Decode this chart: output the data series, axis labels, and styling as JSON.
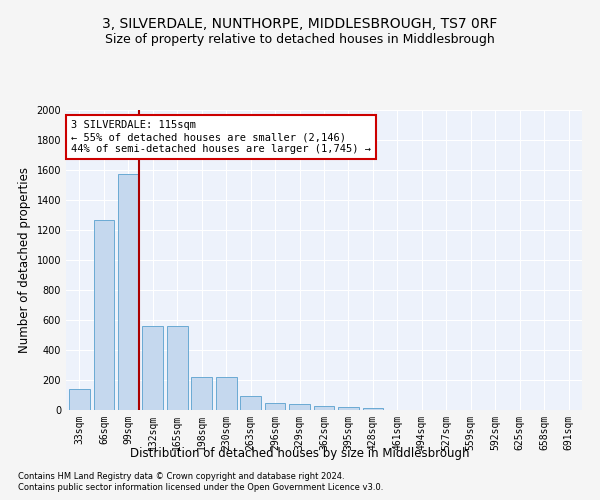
{
  "title": "3, SILVERDALE, NUNTHORPE, MIDDLESBROUGH, TS7 0RF",
  "subtitle": "Size of property relative to detached houses in Middlesbrough",
  "xlabel": "Distribution of detached houses by size in Middlesbrough",
  "ylabel": "Number of detached properties",
  "footnote1": "Contains HM Land Registry data © Crown copyright and database right 2024.",
  "footnote2": "Contains public sector information licensed under the Open Government Licence v3.0.",
  "categories": [
    "33sqm",
    "66sqm",
    "99sqm",
    "132sqm",
    "165sqm",
    "198sqm",
    "230sqm",
    "263sqm",
    "296sqm",
    "329sqm",
    "362sqm",
    "395sqm",
    "428sqm",
    "461sqm",
    "494sqm",
    "527sqm",
    "559sqm",
    "592sqm",
    "625sqm",
    "658sqm",
    "691sqm"
  ],
  "values": [
    140,
    1265,
    1575,
    560,
    560,
    220,
    220,
    95,
    50,
    38,
    25,
    20,
    13,
    0,
    0,
    0,
    0,
    0,
    0,
    0,
    0
  ],
  "bar_color": "#c5d8ee",
  "bar_edge_color": "#6aaad4",
  "vline_x_index": 2,
  "vline_x_offset": 0.42,
  "vline_color": "#aa0000",
  "annotation_text": "3 SILVERDALE: 115sqm\n← 55% of detached houses are smaller (2,146)\n44% of semi-detached houses are larger (1,745) →",
  "annotation_box_facecolor": "#ffffff",
  "annotation_box_edgecolor": "#cc0000",
  "ylim": [
    0,
    2000
  ],
  "yticks": [
    0,
    200,
    400,
    600,
    800,
    1000,
    1200,
    1400,
    1600,
    1800,
    2000
  ],
  "plot_bg_color": "#edf2fb",
  "fig_bg_color": "#f5f5f5",
  "grid_color": "#ffffff",
  "title_fontsize": 10,
  "subtitle_fontsize": 9,
  "tick_fontsize": 7,
  "ylabel_fontsize": 8.5,
  "xlabel_fontsize": 8.5,
  "annotation_fontsize": 7.5,
  "footnote_fontsize": 6
}
